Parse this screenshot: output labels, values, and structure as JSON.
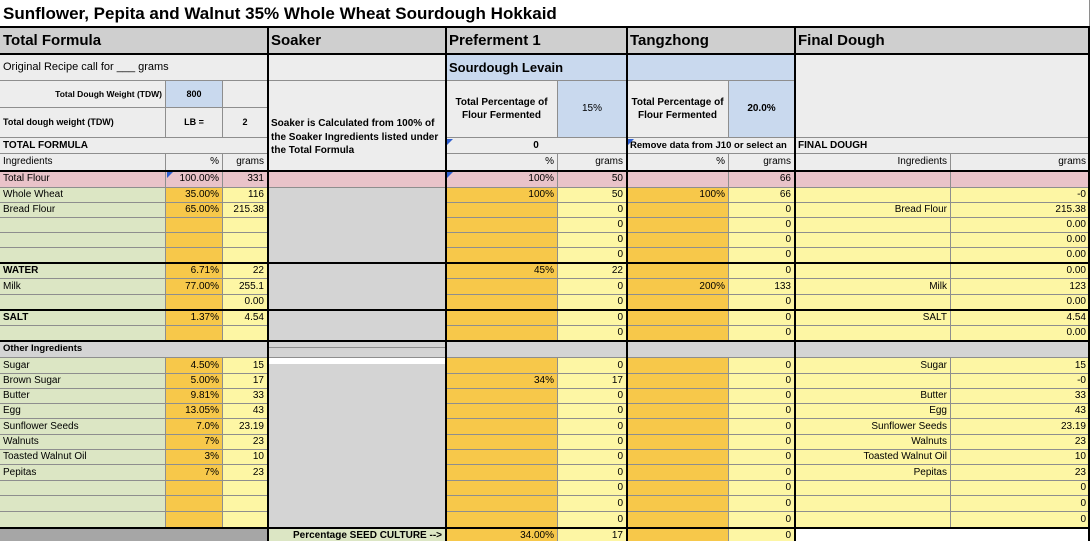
{
  "title": "Sunflower, Pepita and Walnut 35% Whole Wheat Sourdough Hokkaid",
  "sections": {
    "total_formula": "Total Formula",
    "soaker": "Soaker",
    "preferment": "Preferment 1",
    "tangzhong": "Tangzhong",
    "final_dough": "Final Dough"
  },
  "recipe_call": "Original Recipe call for ___ grams",
  "sourdough_levain": "Sourdough Levain",
  "tdw": {
    "label": "Total Dough Weight (TDW)",
    "value": "800"
  },
  "tdw_lb": {
    "label": "Total dough weight (TDW)",
    "unit": "LB =",
    "value": "2"
  },
  "soaker_note": "Soaker is Calculated from 100% of the Soaker Ingredients listed under the Total Formula",
  "pref_pct": {
    "label": "Total Percentage of Flour Fermented",
    "value": "15%"
  },
  "tang_pct": {
    "label": "Total Percentage of Flour Fermented",
    "value": "20.0%"
  },
  "total_formula_label": "TOTAL FORMULA",
  "pref_zero": "0",
  "tang_note": "Remove data from J10 or select an",
  "final_dough_label": "FINAL DOUGH",
  "col_headers": {
    "ingredients": "Ingredients",
    "pct": "%",
    "grams": "grams"
  },
  "rows": [
    {
      "name": "Total Flour",
      "pct": "100.00%",
      "grams": "331",
      "p1pct": "100%",
      "p1g": "50",
      "tpct": "",
      "tg": "66",
      "fname": "",
      "fg": ""
    },
    {
      "name": "Whole Wheat",
      "pct": "35.00%",
      "grams": "116",
      "p1pct": "100%",
      "p1g": "50",
      "tpct": "100%",
      "tg": "66",
      "fname": "",
      "fg": "-0"
    },
    {
      "name": "Bread Flour",
      "pct": "65.00%",
      "grams": "215.38",
      "p1pct": "",
      "p1g": "0",
      "tpct": "",
      "tg": "0",
      "fname": "Bread Flour",
      "fg": "215.38"
    },
    {
      "name": "",
      "pct": "",
      "grams": "",
      "p1pct": "",
      "p1g": "0",
      "tpct": "",
      "tg": "0",
      "fname": "",
      "fg": "0.00"
    },
    {
      "name": "",
      "pct": "",
      "grams": "",
      "p1pct": "",
      "p1g": "0",
      "tpct": "",
      "tg": "0",
      "fname": "",
      "fg": "0.00"
    },
    {
      "name": "",
      "pct": "",
      "grams": "",
      "p1pct": "",
      "p1g": "0",
      "tpct": "",
      "tg": "0",
      "fname": "",
      "fg": "0.00"
    },
    {
      "name": "WATER",
      "pct": "6.71%",
      "grams": "22",
      "p1pct": "45%",
      "p1g": "22",
      "tpct": "",
      "tg": "0",
      "fname": "",
      "fg": "0.00"
    },
    {
      "name": "Milk",
      "pct": "77.00%",
      "grams": "255.1",
      "p1pct": "",
      "p1g": "0",
      "tpct": "200%",
      "tg": "133",
      "fname": "Milk",
      "fg": "123"
    },
    {
      "name": "",
      "pct": "",
      "grams": "0.00",
      "p1pct": "",
      "p1g": "0",
      "tpct": "",
      "tg": "0",
      "fname": "",
      "fg": "0.00"
    },
    {
      "name": "SALT",
      "pct": "1.37%",
      "grams": "4.54",
      "p1pct": "",
      "p1g": "0",
      "tpct": "",
      "tg": "0",
      "fname": "SALT",
      "fg": "4.54"
    },
    {
      "name": "",
      "pct": "",
      "grams": "",
      "p1pct": "",
      "p1g": "0",
      "tpct": "",
      "tg": "0",
      "fname": "",
      "fg": "0.00"
    },
    {
      "name": "Other Ingredients",
      "pct": "",
      "grams": "",
      "p1pct": "",
      "p1g": "",
      "tpct": "",
      "tg": "",
      "fname": "",
      "fg": ""
    },
    {
      "name": "Sugar",
      "pct": "4.50%",
      "grams": "15",
      "p1pct": "",
      "p1g": "0",
      "tpct": "",
      "tg": "0",
      "fname": "Sugar",
      "fg": "15"
    },
    {
      "name": "Brown Sugar",
      "pct": "5.00%",
      "grams": "17",
      "p1pct": "34%",
      "p1g": "17",
      "tpct": "",
      "tg": "0",
      "fname": "",
      "fg": "-0"
    },
    {
      "name": "Butter",
      "pct": "9.81%",
      "grams": "33",
      "p1pct": "",
      "p1g": "0",
      "tpct": "",
      "tg": "0",
      "fname": "Butter",
      "fg": "33"
    },
    {
      "name": "Egg",
      "pct": "13.05%",
      "grams": "43",
      "p1pct": "",
      "p1g": "0",
      "tpct": "",
      "tg": "0",
      "fname": "Egg",
      "fg": "43"
    },
    {
      "name": "Sunflower Seeds",
      "pct": "7.0%",
      "grams": "23.19",
      "p1pct": "",
      "p1g": "0",
      "tpct": "",
      "tg": "0",
      "fname": "Sunflower Seeds",
      "fg": "23.19"
    },
    {
      "name": "Walnuts",
      "pct": "7%",
      "grams": "23",
      "p1pct": "",
      "p1g": "0",
      "tpct": "",
      "tg": "0",
      "fname": "Walnuts",
      "fg": "23"
    },
    {
      "name": "Toasted Walnut Oil",
      "pct": "3%",
      "grams": "10",
      "p1pct": "",
      "p1g": "0",
      "tpct": "",
      "tg": "0",
      "fname": "Toasted Walnut Oil",
      "fg": "10"
    },
    {
      "name": "Pepitas",
      "pct": "7%",
      "grams": "23",
      "p1pct": "",
      "p1g": "0",
      "tpct": "",
      "tg": "0",
      "fname": "Pepitas",
      "fg": "23"
    },
    {
      "name": "",
      "pct": "",
      "grams": "",
      "p1pct": "",
      "p1g": "0",
      "tpct": "",
      "tg": "0",
      "fname": "",
      "fg": "0"
    },
    {
      "name": "",
      "pct": "",
      "grams": "",
      "p1pct": "",
      "p1g": "0",
      "tpct": "",
      "tg": "0",
      "fname": "",
      "fg": "0"
    },
    {
      "name": "",
      "pct": "",
      "grams": "",
      "p1pct": "",
      "p1g": "0",
      "tpct": "",
      "tg": "0",
      "fname": "",
      "fg": "0"
    }
  ],
  "seed_culture": {
    "label": "Percentage SEED CULTURE  -->",
    "pct": "34.00%",
    "grams": "17",
    "tg": "0"
  }
}
